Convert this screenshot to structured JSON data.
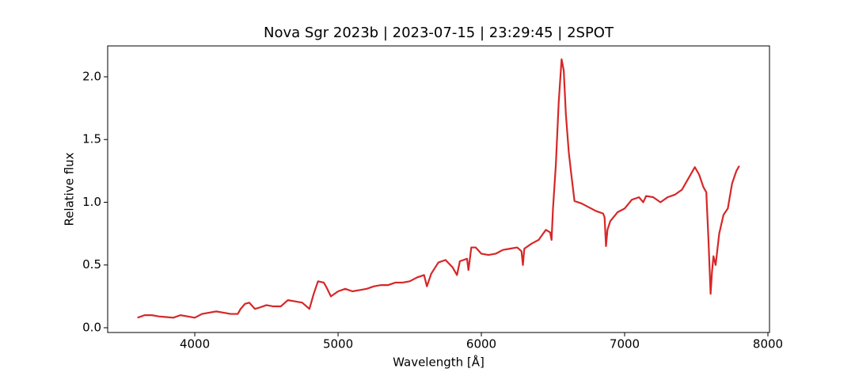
{
  "chart_data": {
    "type": "line",
    "title": "Nova Sgr 2023b | 2023-07-15 | 23:29:45 | 2SPOT",
    "x_label": "Wavelength [Å]",
    "y_label": "Relative flux",
    "x": [
      3600,
      3650,
      3700,
      3750,
      3800,
      3850,
      3900,
      3950,
      4000,
      4050,
      4100,
      4150,
      4200,
      4250,
      4300,
      4320,
      4350,
      4380,
      4420,
      4450,
      4500,
      4550,
      4600,
      4650,
      4700,
      4750,
      4800,
      4830,
      4860,
      4900,
      4920,
      4950,
      5000,
      5050,
      5100,
      5150,
      5200,
      5250,
      5300,
      5350,
      5400,
      5450,
      5500,
      5550,
      5600,
      5620,
      5650,
      5700,
      5750,
      5800,
      5830,
      5850,
      5900,
      5910,
      5930,
      5960,
      6000,
      6050,
      6100,
      6150,
      6200,
      6250,
      6280,
      6290,
      6300,
      6350,
      6400,
      6450,
      6480,
      6490,
      6500,
      6520,
      6540,
      6560,
      6575,
      6590,
      6610,
      6630,
      6650,
      6700,
      6750,
      6800,
      6850,
      6860,
      6870,
      6880,
      6900,
      6950,
      7000,
      7050,
      7100,
      7130,
      7150,
      7200,
      7250,
      7300,
      7350,
      7400,
      7450,
      7490,
      7520,
      7550,
      7570,
      7585,
      7600,
      7610,
      7620,
      7635,
      7660,
      7690,
      7720,
      7750,
      7780,
      7800
    ],
    "series": [
      {
        "name": "Nova Sgr 2023b",
        "color": "#d62728",
        "values": [
          0.08,
          0.1,
          0.1,
          0.09,
          0.085,
          0.08,
          0.1,
          0.09,
          0.08,
          0.11,
          0.12,
          0.13,
          0.12,
          0.11,
          0.11,
          0.15,
          0.19,
          0.2,
          0.15,
          0.16,
          0.18,
          0.17,
          0.17,
          0.22,
          0.21,
          0.2,
          0.15,
          0.27,
          0.37,
          0.36,
          0.32,
          0.25,
          0.29,
          0.31,
          0.29,
          0.3,
          0.31,
          0.33,
          0.34,
          0.34,
          0.36,
          0.36,
          0.37,
          0.4,
          0.42,
          0.33,
          0.43,
          0.52,
          0.54,
          0.48,
          0.42,
          0.53,
          0.55,
          0.46,
          0.64,
          0.64,
          0.59,
          0.58,
          0.59,
          0.62,
          0.63,
          0.64,
          0.61,
          0.5,
          0.63,
          0.67,
          0.7,
          0.78,
          0.76,
          0.7,
          0.95,
          1.3,
          1.8,
          2.14,
          2.05,
          1.7,
          1.4,
          1.2,
          1.01,
          0.99,
          0.96,
          0.93,
          0.91,
          0.88,
          0.65,
          0.78,
          0.85,
          0.92,
          0.95,
          1.02,
          1.04,
          1.0,
          1.05,
          1.04,
          1.0,
          1.04,
          1.06,
          1.1,
          1.2,
          1.28,
          1.22,
          1.12,
          1.08,
          0.7,
          0.27,
          0.45,
          0.57,
          0.5,
          0.75,
          0.9,
          0.95,
          1.15,
          1.25,
          1.29
        ]
      }
    ],
    "xlim": [
      3392,
      8011
    ],
    "ylim": [
      -0.038,
      2.246
    ],
    "xticks": [
      4000,
      5000,
      6000,
      7000,
      8000
    ],
    "yticks": [
      {
        "value": 0,
        "label": "0.0"
      },
      0.5,
      {
        "value": 1,
        "label": "1.0"
      },
      1.5,
      {
        "value": 2,
        "label": "2.0"
      }
    ]
  }
}
